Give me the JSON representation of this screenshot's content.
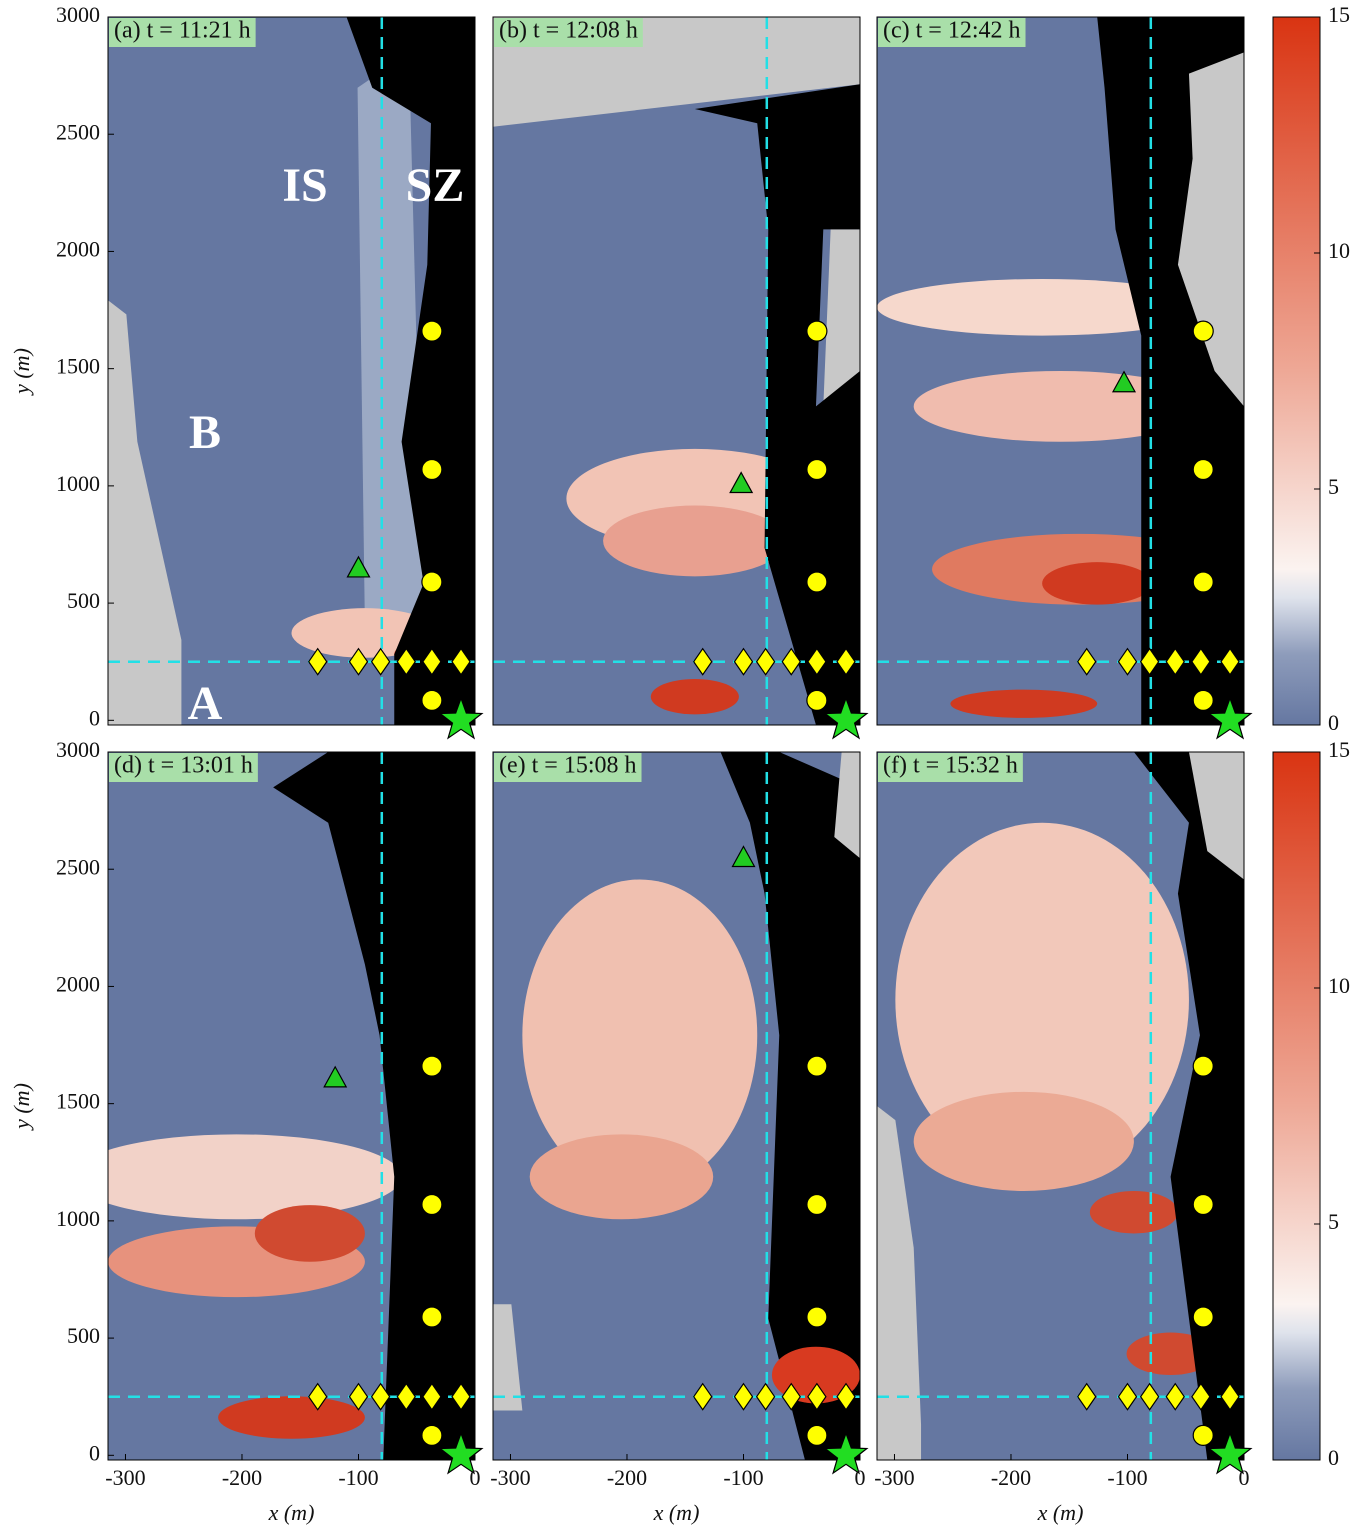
{
  "chart_data": [
    {
      "type": "heatmap",
      "title": "(a) t = 11:21 h",
      "ylabel": "y (m)",
      "xlim": [
        -315,
        0
      ],
      "ylim": [
        -20,
        3000
      ],
      "yticks": [
        0,
        500,
        1000,
        1500,
        2000,
        2500,
        3000
      ],
      "vline": -80,
      "hline": 250,
      "annotations": [
        "IS",
        "SZ",
        "B",
        "A"
      ],
      "circles": {
        "x": [
          -37,
          -37,
          -37,
          -37
        ],
        "y": [
          1660,
          1070,
          590,
          85
        ]
      },
      "diamonds": {
        "x": [
          -135,
          -100,
          -81,
          -59,
          -37,
          -12
        ],
        "y": [
          250,
          250,
          250,
          250,
          250,
          250
        ]
      },
      "triangles": {
        "x": [
          -100
        ],
        "y": [
          650
        ]
      },
      "stars": {
        "x": [
          -12
        ],
        "y": [
          0
        ]
      }
    },
    {
      "type": "heatmap",
      "title": "(b) t = 12:08 h",
      "xlim": [
        -315,
        0
      ],
      "ylim": [
        -20,
        3000
      ],
      "vline": -80,
      "hline": 250,
      "circles": {
        "x": [
          -37,
          -37,
          -37,
          -37
        ],
        "y": [
          1660,
          1070,
          590,
          85
        ]
      },
      "diamonds": {
        "x": [
          -135,
          -100,
          -81,
          -59,
          -37,
          -12
        ],
        "y": [
          250,
          250,
          250,
          250,
          250,
          250
        ]
      },
      "triangles": {
        "x": [
          -102
        ],
        "y": [
          1010
        ]
      },
      "stars": {
        "x": [
          -12
        ],
        "y": [
          0
        ]
      }
    },
    {
      "type": "heatmap",
      "title": "(c) t = 12:42 h",
      "xlim": [
        -315,
        0
      ],
      "ylim": [
        -20,
        3000
      ],
      "vline": -80,
      "hline": 250,
      "circles": {
        "x": [
          -35,
          -35,
          -35,
          -35
        ],
        "y": [
          1660,
          1070,
          590,
          85
        ]
      },
      "diamonds": {
        "x": [
          -135,
          -100,
          -81,
          -59,
          -37,
          -12
        ],
        "y": [
          250,
          250,
          250,
          250,
          250,
          250
        ]
      },
      "triangles": {
        "x": [
          -103
        ],
        "y": [
          1440
        ]
      },
      "stars": {
        "x": [
          -12
        ],
        "y": [
          0
        ]
      },
      "colorbar": {
        "lim": [
          0,
          15
        ],
        "ticks": [
          0,
          5,
          10,
          15
        ]
      }
    },
    {
      "type": "heatmap",
      "title": "(d) t = 13:01 h",
      "xlabel": "x (m)",
      "ylabel": "y (m)",
      "xlim": [
        -315,
        0
      ],
      "ylim": [
        -20,
        3000
      ],
      "xticks": [
        -300,
        -200,
        -100,
        0
      ],
      "yticks": [
        0,
        500,
        1000,
        1500,
        2000,
        2500,
        3000
      ],
      "vline": -80,
      "hline": 250,
      "circles": {
        "x": [
          -37,
          -37,
          -37,
          -37
        ],
        "y": [
          1660,
          1070,
          590,
          85
        ]
      },
      "diamonds": {
        "x": [
          -135,
          -100,
          -81,
          -59,
          -37,
          -12
        ],
        "y": [
          250,
          250,
          250,
          250,
          250,
          250
        ]
      },
      "triangles": {
        "x": [
          -120
        ],
        "y": [
          1610
        ]
      },
      "stars": {
        "x": [
          -12
        ],
        "y": [
          0
        ]
      }
    },
    {
      "type": "heatmap",
      "title": "(e) t = 15:08 h",
      "xlabel": "x (m)",
      "xlim": [
        -315,
        0
      ],
      "ylim": [
        -20,
        3000
      ],
      "xticks": [
        -300,
        -200,
        -100,
        0
      ],
      "vline": -80,
      "hline": 250,
      "circles": {
        "x": [
          -37,
          -37,
          -37,
          -37
        ],
        "y": [
          1660,
          1070,
          590,
          85
        ]
      },
      "diamonds": {
        "x": [
          -135,
          -100,
          -81,
          -59,
          -37,
          -12
        ],
        "y": [
          250,
          250,
          250,
          250,
          250,
          250
        ]
      },
      "triangles": {
        "x": [
          -100
        ],
        "y": [
          2550
        ]
      },
      "stars": {
        "x": [
          -12
        ],
        "y": [
          0
        ]
      }
    },
    {
      "type": "heatmap",
      "title": "(f) t = 15:32 h",
      "xlabel": "x (m)",
      "xlim": [
        -315,
        0
      ],
      "ylim": [
        -20,
        3000
      ],
      "xticks": [
        -300,
        -200,
        -100,
        0
      ],
      "vline": -80,
      "hline": 250,
      "circles": {
        "x": [
          -35,
          -35,
          -35,
          -35
        ],
        "y": [
          1660,
          1070,
          590,
          85
        ]
      },
      "diamonds": {
        "x": [
          -135,
          -100,
          -81,
          -59,
          -37,
          -12
        ],
        "y": [
          250,
          250,
          250,
          250,
          250,
          250
        ]
      },
      "stars": {
        "x": [
          -12
        ],
        "y": [
          0
        ]
      },
      "colorbar": {
        "lim": [
          0,
          15
        ],
        "ticks": [
          0,
          5,
          10,
          15
        ]
      }
    }
  ]
}
